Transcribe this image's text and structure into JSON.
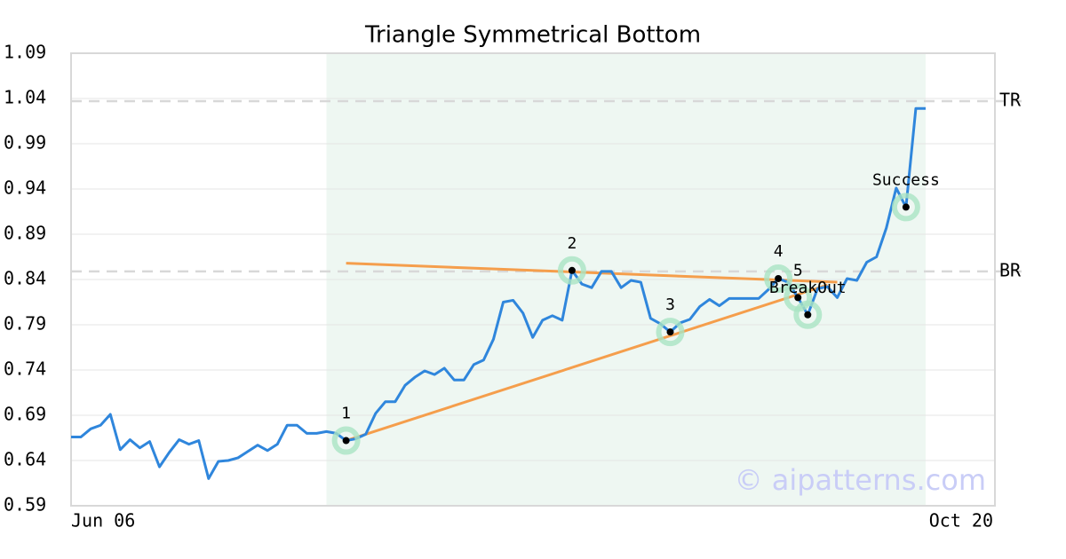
{
  "chart_data": {
    "type": "line",
    "title": "Triangle Symmetrical Bottom",
    "watermark": "© aipatterns.com",
    "categories": [
      "Jun 06",
      null,
      null,
      null,
      null,
      null,
      null,
      null,
      null,
      null,
      null,
      null,
      null,
      null,
      null,
      null,
      null,
      null,
      null,
      null,
      null,
      null,
      null,
      null,
      null,
      null,
      null,
      null,
      null,
      null,
      null,
      null,
      null,
      null,
      null,
      null,
      null,
      null,
      null,
      null,
      null,
      null,
      null,
      null,
      null,
      null,
      null,
      null,
      null,
      null,
      null,
      null,
      null,
      null,
      null,
      null,
      null,
      null,
      null,
      null,
      null,
      null,
      null,
      null,
      null,
      null,
      null,
      null,
      null,
      null,
      null,
      null,
      null,
      null,
      null,
      null,
      null,
      null,
      null,
      null,
      null,
      null,
      null,
      null,
      null,
      null,
      null,
      "Oct 20"
    ],
    "series": [
      {
        "color": "#2f86dc",
        "values": [
          0.666,
          0.666,
          0.675,
          0.679,
          0.691,
          0.652,
          0.663,
          0.654,
          0.661,
          0.633,
          0.649,
          0.663,
          0.658,
          0.662,
          0.62,
          0.639,
          0.64,
          0.643,
          0.65,
          0.657,
          0.651,
          0.658,
          0.679,
          0.679,
          0.67,
          0.67,
          0.672,
          0.67,
          0.662,
          0.664,
          0.669,
          0.692,
          0.705,
          0.705,
          0.723,
          0.732,
          0.739,
          0.735,
          0.742,
          0.729,
          0.729,
          0.746,
          0.751,
          0.774,
          0.815,
          0.817,
          0.803,
          0.776,
          0.795,
          0.8,
          0.795,
          0.85,
          0.835,
          0.831,
          0.849,
          0.849,
          0.831,
          0.839,
          0.837,
          0.797,
          0.791,
          0.782,
          0.792,
          0.796,
          0.81,
          0.818,
          0.811,
          0.819,
          0.819,
          0.819,
          0.819,
          0.829,
          0.841,
          0.837,
          0.82,
          0.801,
          0.83,
          0.832,
          0.82,
          0.841,
          0.839,
          0.859,
          0.865,
          0.897,
          0.941,
          0.92,
          1.029,
          1.029
        ]
      }
    ],
    "ylim": [
      0.59,
      1.09
    ],
    "yticks": [
      0.59,
      0.64,
      0.69,
      0.74,
      0.79,
      0.84,
      0.89,
      0.94,
      0.99,
      1.04,
      1.09
    ],
    "grid": true,
    "pattern_range": [
      26,
      87
    ],
    "pattern_color": "#eef7f2",
    "levels": [
      {
        "label": "TR",
        "value": 1.037
      },
      {
        "label": "BR",
        "value": 0.849
      }
    ],
    "trendlines": [
      {
        "color": "#f59e4c",
        "x": [
          28,
          78
        ],
        "values": [
          0.858,
          0.837
        ]
      },
      {
        "color": "#f59e4c",
        "x": [
          28,
          77
        ],
        "values": [
          0.662,
          0.834
        ]
      }
    ],
    "annotations": [
      {
        "label": "1",
        "index": 28
      },
      {
        "label": "2",
        "index": 51
      },
      {
        "label": "3",
        "index": 61
      },
      {
        "label": "4",
        "index": 72
      },
      {
        "label": "5",
        "index": 74
      },
      {
        "label": "BreakOut",
        "index": 75
      },
      {
        "label": "Success",
        "index": 85
      }
    ]
  }
}
